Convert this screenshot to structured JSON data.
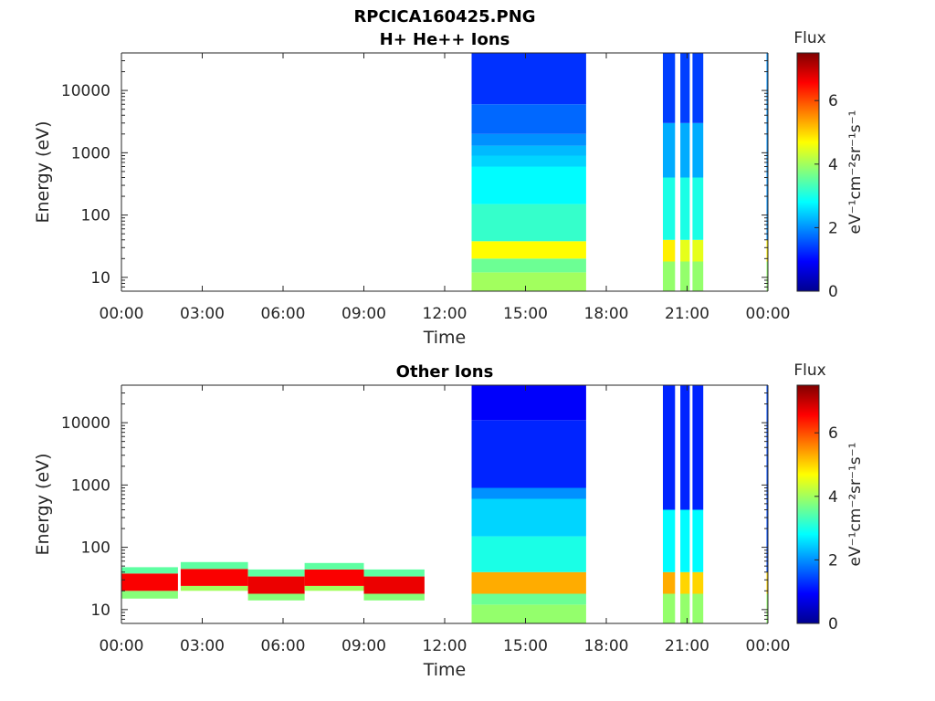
{
  "figure": {
    "title": "RPCICA160425.PNG"
  },
  "colormap": [
    "#00008f",
    "#0000ff",
    "#0080ff",
    "#00ffff",
    "#80ff80",
    "#ffff00",
    "#ff8000",
    "#ff0000",
    "#800000"
  ],
  "chart_data": [
    {
      "type": "heatmap",
      "title": "H+ He++ Ions",
      "xlabel": "Time",
      "ylabel": "Energy (eV)",
      "xlim": [
        "00:00",
        "24:00"
      ],
      "x_ticks": [
        "00:00",
        "03:00",
        "06:00",
        "09:00",
        "12:00",
        "15:00",
        "18:00",
        "21:00",
        "00:00"
      ],
      "ylim": [
        6,
        40000
      ],
      "y_scale": "log",
      "y_ticks": [
        "10",
        "100",
        "1000",
        "10000"
      ],
      "colorbar": {
        "title": "Flux",
        "units": "eV⁻¹cm⁻²sr⁻¹s⁻¹",
        "range": [
          0,
          7.5
        ],
        "ticks": [
          "0",
          "2",
          "4",
          "6"
        ]
      },
      "data_blocks": [
        {
          "start_hour": 13.0,
          "end_hour": 17.25,
          "layers": [
            {
              "e_min": 6,
              "e_max": 12,
              "flux": 4.0
            },
            {
              "e_min": 12,
              "e_max": 20,
              "flux": 3.6
            },
            {
              "e_min": 20,
              "e_max": 38,
              "flux": 4.7
            },
            {
              "e_min": 38,
              "e_max": 150,
              "flux": 3.2
            },
            {
              "e_min": 150,
              "e_max": 600,
              "flux": 2.8
            },
            {
              "e_min": 600,
              "e_max": 900,
              "flux": 2.5
            },
            {
              "e_min": 900,
              "e_max": 1300,
              "flux": 2.3
            },
            {
              "e_min": 1300,
              "e_max": 2000,
              "flux": 2.0
            },
            {
              "e_min": 2000,
              "e_max": 6000,
              "flux": 1.7
            },
            {
              "e_min": 6000,
              "e_max": 40000,
              "flux": 1.3
            }
          ]
        },
        {
          "start_hour": 20.1,
          "end_hour": 20.55,
          "layers": [
            {
              "e_min": 6,
              "e_max": 18,
              "flux": 3.9
            },
            {
              "e_min": 18,
              "e_max": 40,
              "flux": 4.8
            },
            {
              "e_min": 40,
              "e_max": 400,
              "flux": 3.0
            },
            {
              "e_min": 400,
              "e_max": 3000,
              "flux": 2.2
            },
            {
              "e_min": 3000,
              "e_max": 40000,
              "flux": 1.4
            }
          ]
        },
        {
          "start_hour": 20.75,
          "end_hour": 21.1,
          "layers": [
            {
              "e_min": 6,
              "e_max": 18,
              "flux": 3.9
            },
            {
              "e_min": 18,
              "e_max": 40,
              "flux": 4.5
            },
            {
              "e_min": 40,
              "e_max": 400,
              "flux": 3.0
            },
            {
              "e_min": 400,
              "e_max": 3000,
              "flux": 2.2
            },
            {
              "e_min": 3000,
              "e_max": 40000,
              "flux": 1.4
            }
          ]
        },
        {
          "start_hour": 21.2,
          "end_hour": 21.6,
          "layers": [
            {
              "e_min": 6,
              "e_max": 18,
              "flux": 3.9
            },
            {
              "e_min": 18,
              "e_max": 40,
              "flux": 4.5
            },
            {
              "e_min": 40,
              "e_max": 400,
              "flux": 3.0
            },
            {
              "e_min": 400,
              "e_max": 3000,
              "flux": 2.2
            },
            {
              "e_min": 3000,
              "e_max": 40000,
              "flux": 1.4
            }
          ]
        },
        {
          "start_hour": 23.95,
          "end_hour": 24.0,
          "layers": [
            {
              "e_min": 6,
              "e_max": 18,
              "flux": 3.9
            },
            {
              "e_min": 18,
              "e_max": 40,
              "flux": 4.8
            },
            {
              "e_min": 40,
              "e_max": 40000,
              "flux": 2.0
            }
          ]
        }
      ]
    },
    {
      "type": "heatmap",
      "title": "Other Ions",
      "xlabel": "Time",
      "ylabel": "Energy (eV)",
      "xlim": [
        "00:00",
        "24:00"
      ],
      "x_ticks": [
        "00:00",
        "03:00",
        "06:00",
        "09:00",
        "12:00",
        "15:00",
        "18:00",
        "21:00",
        "00:00"
      ],
      "ylim": [
        6,
        40000
      ],
      "y_scale": "log",
      "y_ticks": [
        "10",
        "100",
        "1000",
        "10000"
      ],
      "colorbar": {
        "title": "Flux",
        "units": "eV⁻¹cm⁻²sr⁻¹s⁻¹",
        "range": [
          0,
          7.5
        ],
        "ticks": [
          "0",
          "2",
          "4",
          "6"
        ]
      },
      "data_blocks": [
        {
          "start_hour": 0.0,
          "end_hour": 2.1,
          "layers": [
            {
              "e_min": 15,
              "e_max": 20,
              "flux": 3.8
            },
            {
              "e_min": 20,
              "e_max": 38,
              "flux": 6.6
            },
            {
              "e_min": 38,
              "e_max": 48,
              "flux": 3.5
            }
          ]
        },
        {
          "start_hour": 2.2,
          "end_hour": 4.7,
          "layers": [
            {
              "e_min": 20,
              "e_max": 24,
              "flux": 4.0
            },
            {
              "e_min": 24,
              "e_max": 45,
              "flux": 6.6
            },
            {
              "e_min": 45,
              "e_max": 58,
              "flux": 3.5
            }
          ]
        },
        {
          "start_hour": 4.7,
          "end_hour": 6.8,
          "layers": [
            {
              "e_min": 14,
              "e_max": 18,
              "flux": 3.8
            },
            {
              "e_min": 18,
              "e_max": 34,
              "flux": 6.7
            },
            {
              "e_min": 34,
              "e_max": 44,
              "flux": 3.5
            }
          ]
        },
        {
          "start_hour": 6.8,
          "end_hour": 9.0,
          "layers": [
            {
              "e_min": 20,
              "e_max": 24,
              "flux": 4.0
            },
            {
              "e_min": 24,
              "e_max": 44,
              "flux": 6.6
            },
            {
              "e_min": 44,
              "e_max": 56,
              "flux": 3.5
            }
          ]
        },
        {
          "start_hour": 9.0,
          "end_hour": 11.25,
          "layers": [
            {
              "e_min": 14,
              "e_max": 18,
              "flux": 3.8
            },
            {
              "e_min": 18,
              "e_max": 34,
              "flux": 6.7
            },
            {
              "e_min": 34,
              "e_max": 44,
              "flux": 3.5
            }
          ]
        },
        {
          "start_hour": 13.0,
          "end_hour": 17.25,
          "layers": [
            {
              "e_min": 6,
              "e_max": 12,
              "flux": 3.9
            },
            {
              "e_min": 12,
              "e_max": 18,
              "flux": 3.6
            },
            {
              "e_min": 18,
              "e_max": 40,
              "flux": 5.3
            },
            {
              "e_min": 40,
              "e_max": 150,
              "flux": 3.0
            },
            {
              "e_min": 150,
              "e_max": 600,
              "flux": 2.5
            },
            {
              "e_min": 600,
              "e_max": 900,
              "flux": 2.0
            },
            {
              "e_min": 900,
              "e_max": 11000,
              "flux": 1.2
            },
            {
              "e_min": 11000,
              "e_max": 40000,
              "flux": 0.9
            }
          ]
        },
        {
          "start_hour": 20.1,
          "end_hour": 20.55,
          "layers": [
            {
              "e_min": 6,
              "e_max": 18,
              "flux": 3.9
            },
            {
              "e_min": 18,
              "e_max": 40,
              "flux": 5.3
            },
            {
              "e_min": 40,
              "e_max": 400,
              "flux": 2.8
            },
            {
              "e_min": 400,
              "e_max": 40000,
              "flux": 1.2
            }
          ]
        },
        {
          "start_hour": 20.75,
          "end_hour": 21.1,
          "layers": [
            {
              "e_min": 6,
              "e_max": 18,
              "flux": 3.9
            },
            {
              "e_min": 18,
              "e_max": 40,
              "flux": 5.0
            },
            {
              "e_min": 40,
              "e_max": 400,
              "flux": 2.8
            },
            {
              "e_min": 400,
              "e_max": 40000,
              "flux": 1.2
            }
          ]
        },
        {
          "start_hour": 21.2,
          "end_hour": 21.6,
          "layers": [
            {
              "e_min": 6,
              "e_max": 18,
              "flux": 3.9
            },
            {
              "e_min": 18,
              "e_max": 40,
              "flux": 5.0
            },
            {
              "e_min": 40,
              "e_max": 400,
              "flux": 2.8
            },
            {
              "e_min": 400,
              "e_max": 40000,
              "flux": 1.2
            }
          ]
        },
        {
          "start_hour": 23.95,
          "end_hour": 24.0,
          "layers": [
            {
              "e_min": 6,
              "e_max": 18,
              "flux": 3.9
            },
            {
              "e_min": 18,
              "e_max": 40,
              "flux": 5.0
            },
            {
              "e_min": 40,
              "e_max": 40000,
              "flux": 1.5
            }
          ]
        }
      ]
    }
  ]
}
